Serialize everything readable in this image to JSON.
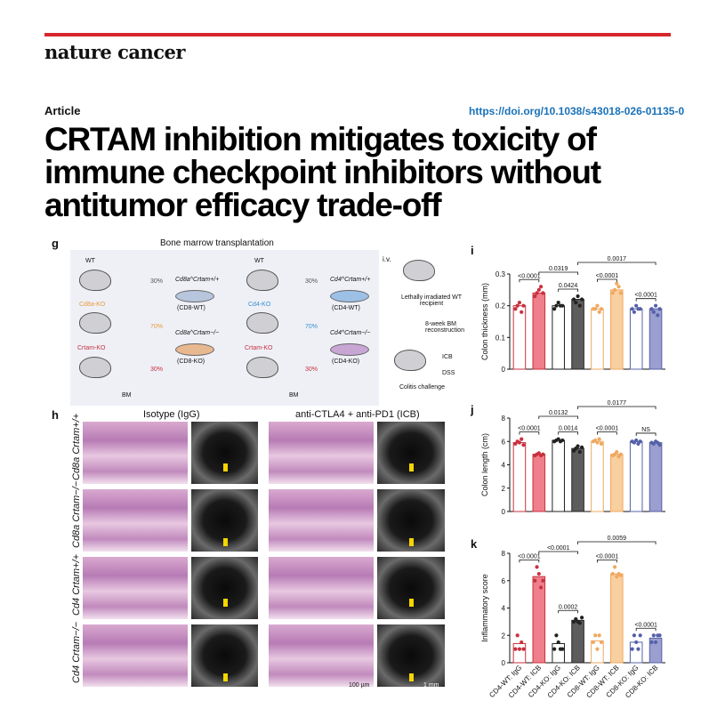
{
  "journal": "nature cancer",
  "article_label": "Article",
  "doi": "https://doi.org/10.1038/s43018-026-01135-0",
  "title_lines": [
    "CRTAM inhibition mitigates toxicity of",
    "immune checkpoint inhibitors without",
    "antitumor efficacy trade-off"
  ],
  "colors": {
    "accent_rule": "#d7262d",
    "doi_link": "#1a72b8"
  },
  "panel_g": {
    "letter": "g",
    "title": "Bone marrow transplantation",
    "left_mice": [
      "WT",
      "Cd8a-KO",
      "Crtam-KO"
    ],
    "right_mice": [
      "WT",
      "Cd4-KO",
      "Crtam-KO"
    ],
    "pct_top": "30%",
    "pct_mid": "70%",
    "pct_bot": "30%",
    "dish_left_top": "Cd8a^Crtam+/+",
    "dish_left_top_sub": "(CD8-WT)",
    "dish_left_bot": "Cd8a^Crtam−/−",
    "dish_left_bot_sub": "(CD8-KO)",
    "dish_right_top": "Cd4^Crtam+/+",
    "dish_right_top_sub": "(CD4-WT)",
    "dish_right_bot": "Cd4^Crtam−/−",
    "dish_right_bot_sub": "(CD4-KO)",
    "bm": "BM",
    "iv": "i.v.",
    "recipient": "Lethally irradiated WT recipient",
    "reconstruction": "8-week BM reconstruction",
    "icb": "ICB",
    "dss": "DSS",
    "challenge": "Colitis challenge",
    "mouse_icon": "mouse-icon",
    "bone_icon": "bone-icon"
  },
  "panel_h": {
    "letter": "h",
    "col_isotype": "Isotype (IgG)",
    "col_icb": "anti-CTLA4 + anti-PD1 (ICB)",
    "row_labels": [
      "Cd8a Crtam+/+",
      "Cd8a Crtam−/−",
      "Cd4 Crtam+/+",
      "Cd4 Crtam−/−"
    ],
    "scale_histo": "100 µm",
    "scale_us": "1 mm"
  },
  "chart_data": [
    {
      "type": "bar",
      "letter": "i",
      "ylabel": "Colon thickness (mm)",
      "ylim": [
        0,
        0.3
      ],
      "yticks": [
        "0",
        "0.1",
        "0.2",
        "0.3"
      ],
      "categories": [
        "CD4-WT: IgG",
        "CD4-WT: ICB",
        "CD4-KO: IgG",
        "CD4-KO: ICB",
        "CD8-WT: IgG",
        "CD8-WT: ICB",
        "CD8-KO: IgG",
        "CD8-KO: ICB"
      ],
      "values": [
        0.2,
        0.24,
        0.2,
        0.22,
        0.19,
        0.25,
        0.19,
        0.19
      ],
      "points": [
        [
          0.19,
          0.2,
          0.21,
          0.18,
          0.2
        ],
        [
          0.23,
          0.24,
          0.25,
          0.26,
          0.24
        ],
        [
          0.19,
          0.2,
          0.21,
          0.2,
          0.2
        ],
        [
          0.22,
          0.21,
          0.23,
          0.2,
          0.22
        ],
        [
          0.19,
          0.19,
          0.2,
          0.18,
          0.19
        ],
        [
          0.24,
          0.25,
          0.27,
          0.26,
          0.24
        ],
        [
          0.19,
          0.18,
          0.2,
          0.19,
          0.19
        ],
        [
          0.19,
          0.18,
          0.2,
          0.17,
          0.19
        ]
      ],
      "colors": [
        "#c9303e",
        "#c9303e",
        "#222222",
        "#222222",
        "#f0a860",
        "#f0a860",
        "#5560a8",
        "#5560a8"
      ],
      "fills": [
        "#ffffff",
        "#ef7f8a",
        "#ffffff",
        "#5d5d5d",
        "#ffffff",
        "#f8cf9e",
        "#ffffff",
        "#9a9fd0"
      ],
      "annotations": [
        {
          "text": "<0.0001",
          "from": 0,
          "to": 1,
          "level": 1
        },
        {
          "text": "0.0424",
          "from": 2,
          "to": 3,
          "level": 1
        },
        {
          "text": "<0.0001",
          "from": 4,
          "to": 5,
          "level": 1
        },
        {
          "text": "<0.0001",
          "from": 6,
          "to": 7,
          "level": 1
        },
        {
          "text": "0.0319",
          "from": 1,
          "to": 3,
          "level": 2
        },
        {
          "text": "0.0017",
          "from": 3,
          "to": 7,
          "level": 3
        }
      ]
    },
    {
      "type": "bar",
      "letter": "j",
      "ylabel": "Colon length (cm)",
      "ylim": [
        0,
        8
      ],
      "yticks": [
        "0",
        "2",
        "4",
        "6",
        "8"
      ],
      "categories": [
        "CD4-WT: IgG",
        "CD4-WT: ICB",
        "CD4-KO: IgG",
        "CD4-KO: ICB",
        "CD8-WT: IgG",
        "CD8-WT: ICB",
        "CD8-KO: IgG",
        "CD8-KO: ICB"
      ],
      "values": [
        5.9,
        4.9,
        6.1,
        5.4,
        6.0,
        4.9,
        6.0,
        5.9
      ],
      "points": [
        [
          5.8,
          6.0,
          5.9,
          6.2,
          5.7
        ],
        [
          4.8,
          4.9,
          5.0,
          4.8,
          4.9
        ],
        [
          6.0,
          6.1,
          6.2,
          6.0,
          6.1
        ],
        [
          5.2,
          5.4,
          5.6,
          5.1,
          5.5
        ],
        [
          6.0,
          6.1,
          5.9,
          6.2,
          5.8
        ],
        [
          4.8,
          4.9,
          5.1,
          4.7,
          4.9
        ],
        [
          6.0,
          5.9,
          6.1,
          5.8,
          6.0
        ],
        [
          5.9,
          5.8,
          6.0,
          5.9,
          5.7
        ]
      ],
      "colors": [
        "#c9303e",
        "#c9303e",
        "#222222",
        "#222222",
        "#f0a860",
        "#f0a860",
        "#5560a8",
        "#5560a8"
      ],
      "fills": [
        "#ffffff",
        "#ef7f8a",
        "#ffffff",
        "#5d5d5d",
        "#ffffff",
        "#f8cf9e",
        "#ffffff",
        "#9a9fd0"
      ],
      "annotations": [
        {
          "text": "<0.0001",
          "from": 0,
          "to": 1,
          "level": 1
        },
        {
          "text": "0.0014",
          "from": 2,
          "to": 3,
          "level": 1
        },
        {
          "text": "<0.0001",
          "from": 4,
          "to": 5,
          "level": 1
        },
        {
          "text": "NS",
          "from": 6,
          "to": 7,
          "level": 1
        },
        {
          "text": "0.0132",
          "from": 1,
          "to": 3,
          "level": 2
        },
        {
          "text": "0.0177",
          "from": 3,
          "to": 7,
          "level": 3
        }
      ]
    },
    {
      "type": "bar",
      "letter": "k",
      "ylabel": "Inflammatory score",
      "ylim": [
        0,
        8
      ],
      "yticks": [
        "0",
        "2",
        "4",
        "6",
        "8"
      ],
      "categories": [
        "CD4-WT: IgG",
        "CD4-WT: ICB",
        "CD4-KO: IgG",
        "CD4-KO: ICB",
        "CD8-WT: IgG",
        "CD8-WT: ICB",
        "CD8-KO: IgG",
        "CD8-KO: ICB"
      ],
      "values": [
        1.4,
        6.3,
        1.4,
        3.1,
        1.6,
        6.5,
        1.5,
        1.8
      ],
      "points": [
        [
          1,
          2,
          1,
          1.5,
          1
        ],
        [
          6,
          7,
          6.5,
          5.5,
          6
        ],
        [
          1,
          2,
          1.5,
          1,
          1
        ],
        [
          3,
          3.2,
          3,
          2.9,
          3.3
        ],
        [
          1.5,
          2,
          1,
          2,
          1.5
        ],
        [
          6.5,
          7,
          6.3,
          6.5,
          6.4
        ],
        [
          1,
          2,
          1.5,
          1,
          2
        ],
        [
          1.5,
          2,
          1.5,
          2,
          2
        ]
      ],
      "colors": [
        "#c9303e",
        "#c9303e",
        "#222222",
        "#222222",
        "#f0a860",
        "#f0a860",
        "#5560a8",
        "#5560a8"
      ],
      "fills": [
        "#ffffff",
        "#ef7f8a",
        "#ffffff",
        "#5d5d5d",
        "#ffffff",
        "#f8cf9e",
        "#ffffff",
        "#9a9fd0"
      ],
      "annotations": [
        {
          "text": "<0.0001",
          "from": 0,
          "to": 1,
          "level": 1
        },
        {
          "text": "0.0002",
          "from": 2,
          "to": 3,
          "level": 1
        },
        {
          "text": "<0.0001",
          "from": 4,
          "to": 5,
          "level": 1
        },
        {
          "text": "<0.0001",
          "from": 6,
          "to": 7,
          "level": 1
        },
        {
          "text": "<0.0001",
          "from": 1,
          "to": 3,
          "level": 2
        },
        {
          "text": "0.0059",
          "from": 3,
          "to": 7,
          "level": 3
        }
      ]
    }
  ]
}
